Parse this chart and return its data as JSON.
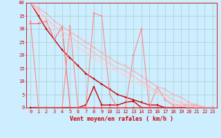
{
  "background_color": "#cceeff",
  "grid_color": "#aacccc",
  "xlabel": "Vent moyen/en rafales ( km/h )",
  "xlim": [
    -0.5,
    23.5
  ],
  "ylim": [
    0,
    40
  ],
  "yticks": [
    0,
    5,
    10,
    15,
    20,
    25,
    30,
    35,
    40
  ],
  "xticks": [
    0,
    1,
    2,
    3,
    4,
    5,
    6,
    7,
    8,
    9,
    10,
    11,
    12,
    13,
    14,
    15,
    16,
    17,
    18,
    19,
    20,
    21,
    22,
    23
  ],
  "series": [
    {
      "x": [
        0,
        1,
        2,
        3,
        4,
        5,
        6,
        7,
        8,
        9,
        10,
        11,
        12,
        13,
        14,
        15,
        16,
        17,
        18,
        19,
        20,
        21,
        22,
        23
      ],
      "y": [
        40,
        35,
        30,
        26,
        22,
        19,
        16,
        13,
        11,
        9,
        7,
        5,
        4,
        3,
        2,
        1,
        1,
        0,
        0,
        0,
        0,
        0,
        0,
        0
      ],
      "color": "#cc0000",
      "linewidth": 1.0,
      "marker": "s",
      "markersize": 2.0,
      "linestyle": "-"
    },
    {
      "x": [
        0,
        1,
        2,
        3,
        4,
        5,
        6,
        7,
        8,
        9,
        10,
        11,
        12,
        13,
        14,
        15,
        16,
        17,
        18,
        19,
        20,
        21,
        22,
        23
      ],
      "y": [
        0,
        0,
        0,
        0,
        0,
        0,
        0,
        1,
        8,
        1,
        1,
        1,
        2,
        2.5,
        0,
        0,
        0,
        0,
        0,
        0,
        0,
        0,
        0,
        0
      ],
      "color": "#cc0000",
      "linewidth": 1.0,
      "marker": "s",
      "markersize": 2.0,
      "linestyle": "-"
    },
    {
      "x": [
        0,
        1,
        2,
        3,
        4,
        5,
        6,
        7,
        8,
        9,
        10,
        11,
        12,
        13,
        14,
        15,
        16,
        17,
        18,
        19,
        20,
        21,
        22,
        23
      ],
      "y": [
        32,
        32,
        33,
        26,
        31,
        0,
        0,
        0,
        0,
        0,
        0,
        0,
        0,
        0,
        0,
        0,
        0,
        0,
        0,
        0,
        0,
        0,
        0,
        0
      ],
      "color": "#ff6666",
      "linewidth": 0.8,
      "marker": "s",
      "markersize": 2.0,
      "linestyle": "-"
    },
    {
      "x": [
        0,
        1,
        2,
        3,
        4,
        5,
        6,
        7,
        8,
        9,
        10,
        11,
        12,
        13,
        14,
        15,
        16,
        17,
        18,
        19,
        20,
        21,
        22,
        23
      ],
      "y": [
        33,
        0,
        0,
        0,
        0,
        31,
        0,
        0,
        36,
        35,
        5,
        0,
        0,
        20,
        30,
        0,
        8,
        3,
        1,
        1,
        1,
        1,
        0,
        0
      ],
      "color": "#ff8888",
      "linewidth": 0.8,
      "marker": "s",
      "markersize": 2.0,
      "linestyle": "-"
    },
    {
      "x": [
        0,
        1,
        2,
        3,
        4,
        5,
        6,
        7,
        8,
        9,
        10,
        11,
        12,
        13,
        14,
        15,
        16,
        17,
        18,
        19,
        20,
        21,
        22,
        23
      ],
      "y": [
        40,
        38,
        36,
        33,
        31,
        29,
        27,
        25,
        23,
        21,
        19,
        17,
        16,
        14,
        12,
        10,
        8,
        7,
        5,
        4,
        2,
        1,
        0,
        0
      ],
      "color": "#ffaaaa",
      "linewidth": 0.8,
      "marker": "s",
      "markersize": 2.0,
      "linestyle": "-"
    },
    {
      "x": [
        0,
        1,
        2,
        3,
        4,
        5,
        6,
        7,
        8,
        9,
        10,
        11,
        12,
        13,
        14,
        15,
        16,
        17,
        18,
        19,
        20,
        21,
        22,
        23
      ],
      "y": [
        40,
        37,
        34,
        31,
        29,
        27,
        25,
        23,
        21,
        19,
        17,
        15,
        14,
        12,
        10,
        8,
        6,
        5,
        3,
        2,
        1,
        0,
        0,
        0
      ],
      "color": "#ffbbbb",
      "linewidth": 0.8,
      "marker": "s",
      "markersize": 2.0,
      "linestyle": "-"
    },
    {
      "x": [
        0,
        1,
        2,
        3,
        4,
        5,
        6,
        7,
        8,
        9,
        10,
        11,
        12,
        13,
        14,
        15,
        16,
        17,
        18,
        19,
        20,
        21,
        22,
        23
      ],
      "y": [
        40,
        36,
        32,
        29,
        27,
        25,
        23,
        21,
        19,
        17,
        15,
        14,
        12,
        10,
        9,
        7,
        5,
        4,
        2,
        1,
        0,
        0,
        0,
        0
      ],
      "color": "#ffcccc",
      "linewidth": 0.8,
      "marker": "s",
      "markersize": 2.0,
      "linestyle": "-"
    }
  ]
}
